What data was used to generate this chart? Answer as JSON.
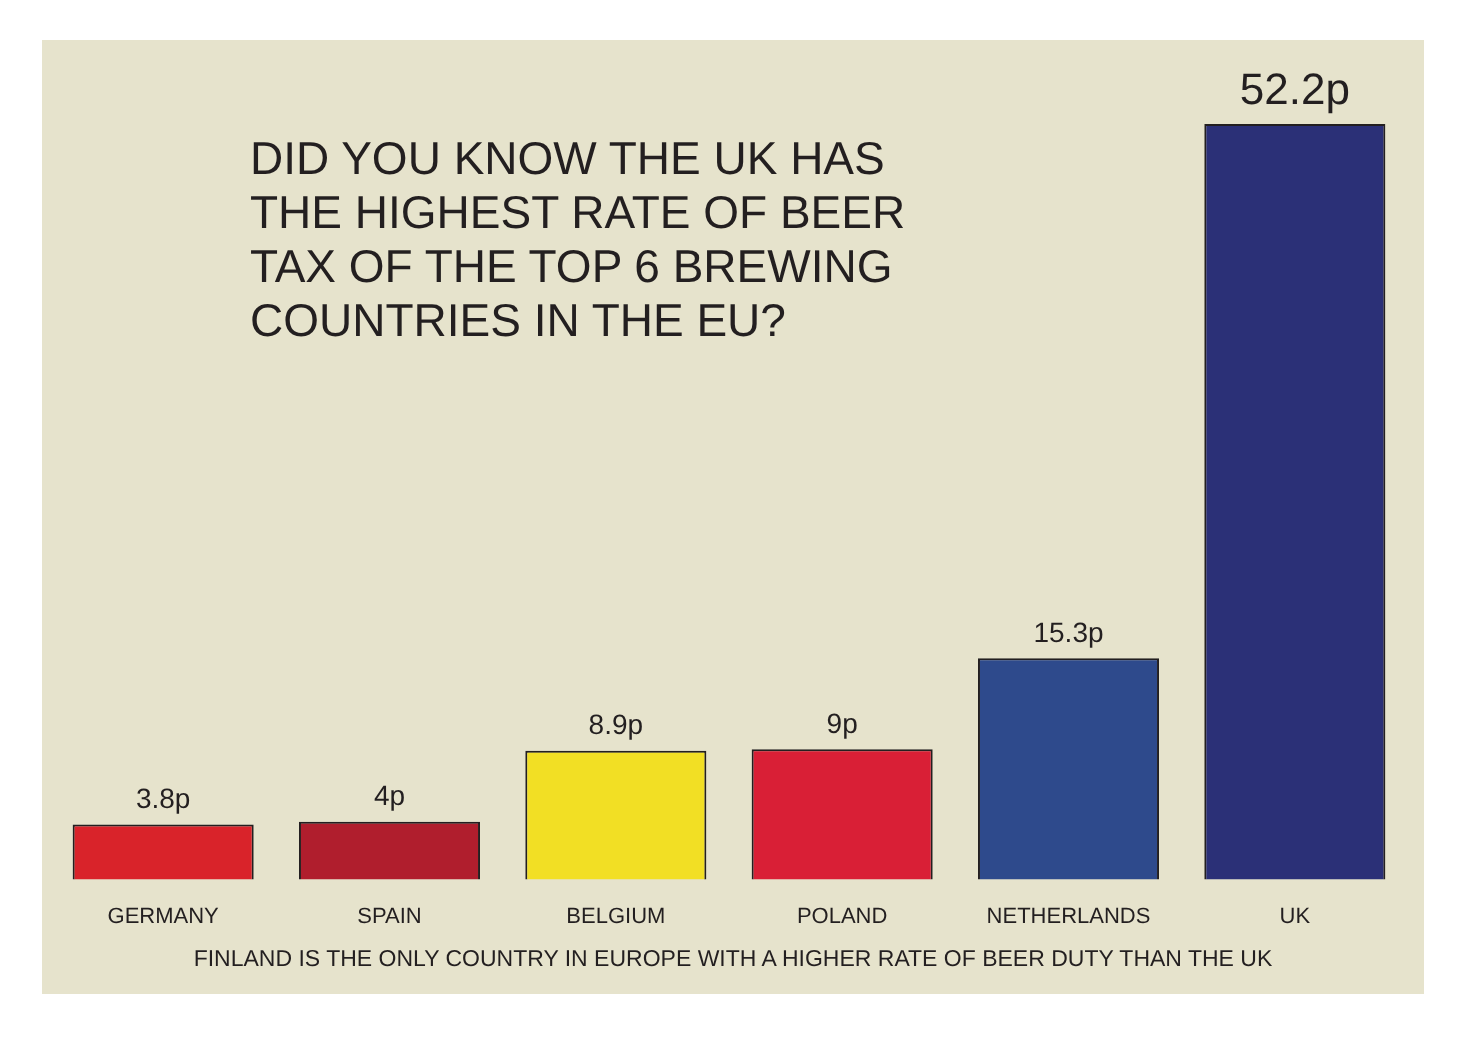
{
  "chart_data": {
    "type": "bar",
    "title": "DID YOU KNOW THE UK HAS THE HIGHEST RATE OF BEER TAX OF THE TOP 6 BREWING COUNTRIES IN THE EU?",
    "categories": [
      "GERMANY",
      "SPAIN",
      "BELGIUM",
      "POLAND",
      "NETHERLANDS",
      "UK"
    ],
    "values": [
      3.8,
      4,
      8.9,
      9,
      15.3,
      52.2
    ],
    "value_labels": [
      "3.8p",
      "4p",
      "8.9p",
      "9p",
      "15.3p",
      "52.2p"
    ],
    "colors": [
      "#d9232a",
      "#b01e2d",
      "#f2df24",
      "#d91f36",
      "#2e4a8c",
      "#2b3077"
    ],
    "annotations": [
      "FINLAND IS THE ONLY COUNTRY IN EUROPE WITH A HIGHER RATE OF BEER DUTY THAN THE UK"
    ]
  }
}
